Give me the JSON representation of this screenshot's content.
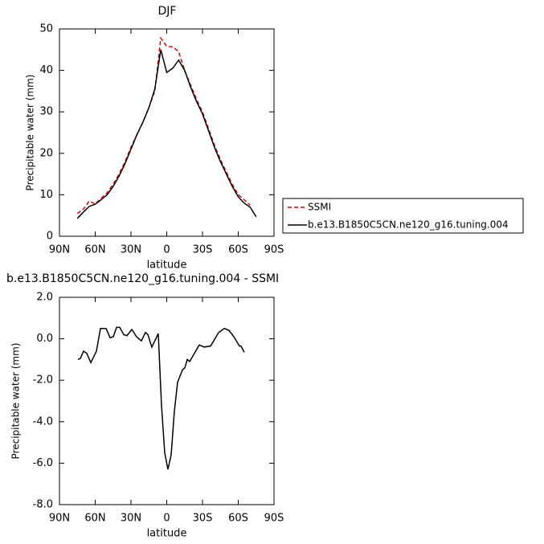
{
  "chart_data": [
    {
      "type": "line",
      "title": "DJF",
      "xlabel": "latitude",
      "ylabel": "Precipitable water (mm)",
      "x": [
        75,
        70,
        65,
        60,
        55,
        50,
        45,
        40,
        35,
        30,
        25,
        20,
        15,
        10,
        5,
        0,
        -5,
        -10,
        -15,
        -20,
        -25,
        -30,
        -35,
        -40,
        -45,
        -50,
        -55,
        -60,
        -65,
        -70,
        -75
      ],
      "series": [
        {
          "name": "SSMI",
          "color": "#e00000",
          "dash": true,
          "values": [
            5.5,
            6.5,
            8.5,
            7.8,
            9.2,
            10.5,
            12.5,
            15.0,
            18.0,
            21.5,
            24.5,
            27.5,
            31.0,
            35.0,
            47.8,
            45.8,
            45.7,
            44.5,
            40.0,
            36.5,
            33.0,
            30.0,
            26.0,
            22.0,
            18.5,
            15.5,
            12.5,
            10.0,
            8.8,
            7.5,
            null
          ]
        },
        {
          "name": "b.e13.B1850C5CN.ne120_g16.tuning.004",
          "color": "#000000",
          "dash": false,
          "values": [
            4.3,
            5.8,
            7.2,
            7.7,
            8.8,
            10.0,
            12.0,
            14.5,
            17.5,
            21.0,
            24.5,
            27.5,
            31.0,
            35.5,
            45.0,
            39.5,
            40.5,
            42.5,
            40.0,
            36.0,
            32.5,
            29.5,
            25.5,
            21.5,
            18.0,
            15.0,
            12.0,
            9.5,
            8.0,
            7.0,
            4.7
          ]
        }
      ],
      "xlim": [
        90,
        -90
      ],
      "ylim": [
        0,
        50
      ],
      "xticks": [
        {
          "value": 90,
          "label": "90N"
        },
        {
          "value": 60,
          "label": "60N"
        },
        {
          "value": 30,
          "label": "30N"
        },
        0,
        {
          "value": -30,
          "label": "30S"
        },
        {
          "value": -60,
          "label": "60S"
        },
        {
          "value": -90,
          "label": "90S"
        }
      ],
      "yticks": [
        0,
        10,
        20,
        30,
        40,
        50
      ],
      "legend": "right"
    },
    {
      "type": "line",
      "title": "b.e13.B1850C5CN.ne120_g16.tuning.004 - SSMI",
      "xlabel": "latitude",
      "ylabel": "Precipitable water (mm)",
      "x": [
        74.5,
        72.5,
        69.8,
        67.1,
        63.7,
        59.0,
        55.6,
        50.9,
        47.5,
        44.8,
        42.1,
        39.4,
        36.1,
        33.4,
        29.3,
        25.3,
        21.3,
        17.9,
        15.8,
        12.5,
        7.1,
        4.4,
        1.7,
        -1.0,
        -3.7,
        -6.4,
        -9.1,
        -13.2,
        -15.2,
        -17.2,
        -19.2,
        -27.3,
        -31.4,
        -36.8,
        -43.5,
        -48.3,
        -52.3,
        -56.3,
        -61.0,
        -62.3,
        -65.0
      ],
      "series": [
        {
          "color": "#000000",
          "dash": false,
          "values": [
            -1.0,
            -0.95,
            -0.6,
            -0.7,
            -1.15,
            -0.6,
            0.5,
            0.5,
            0.05,
            0.1,
            0.55,
            0.55,
            0.2,
            0.15,
            0.45,
            0.1,
            -0.1,
            0.3,
            0.2,
            -0.4,
            0.25,
            -3.2,
            -5.5,
            -6.3,
            -5.6,
            -3.5,
            -2.1,
            -1.5,
            -1.4,
            -1.0,
            -1.1,
            -0.3,
            -0.4,
            -0.35,
            0.3,
            0.5,
            0.4,
            0.1,
            -0.35,
            -0.35,
            -0.65
          ]
        }
      ],
      "xlim": [
        90,
        -90
      ],
      "ylim": [
        -8,
        2
      ],
      "xticks": [
        {
          "value": 90,
          "label": "90N"
        },
        {
          "value": 60,
          "label": "60N"
        },
        {
          "value": 30,
          "label": "30N"
        },
        0,
        {
          "value": -30,
          "label": "30S"
        },
        {
          "value": -60,
          "label": "60S"
        },
        {
          "value": -90,
          "label": "90S"
        }
      ],
      "yticks": [
        {
          "value": 2,
          "label": "2.0"
        },
        {
          "value": 0,
          "label": "0.0"
        },
        {
          "value": -2,
          "label": "-2.0"
        },
        {
          "value": -4,
          "label": "-4.0"
        },
        {
          "value": -6,
          "label": "-6.0"
        },
        {
          "value": -8,
          "label": "-8.0"
        }
      ]
    }
  ]
}
